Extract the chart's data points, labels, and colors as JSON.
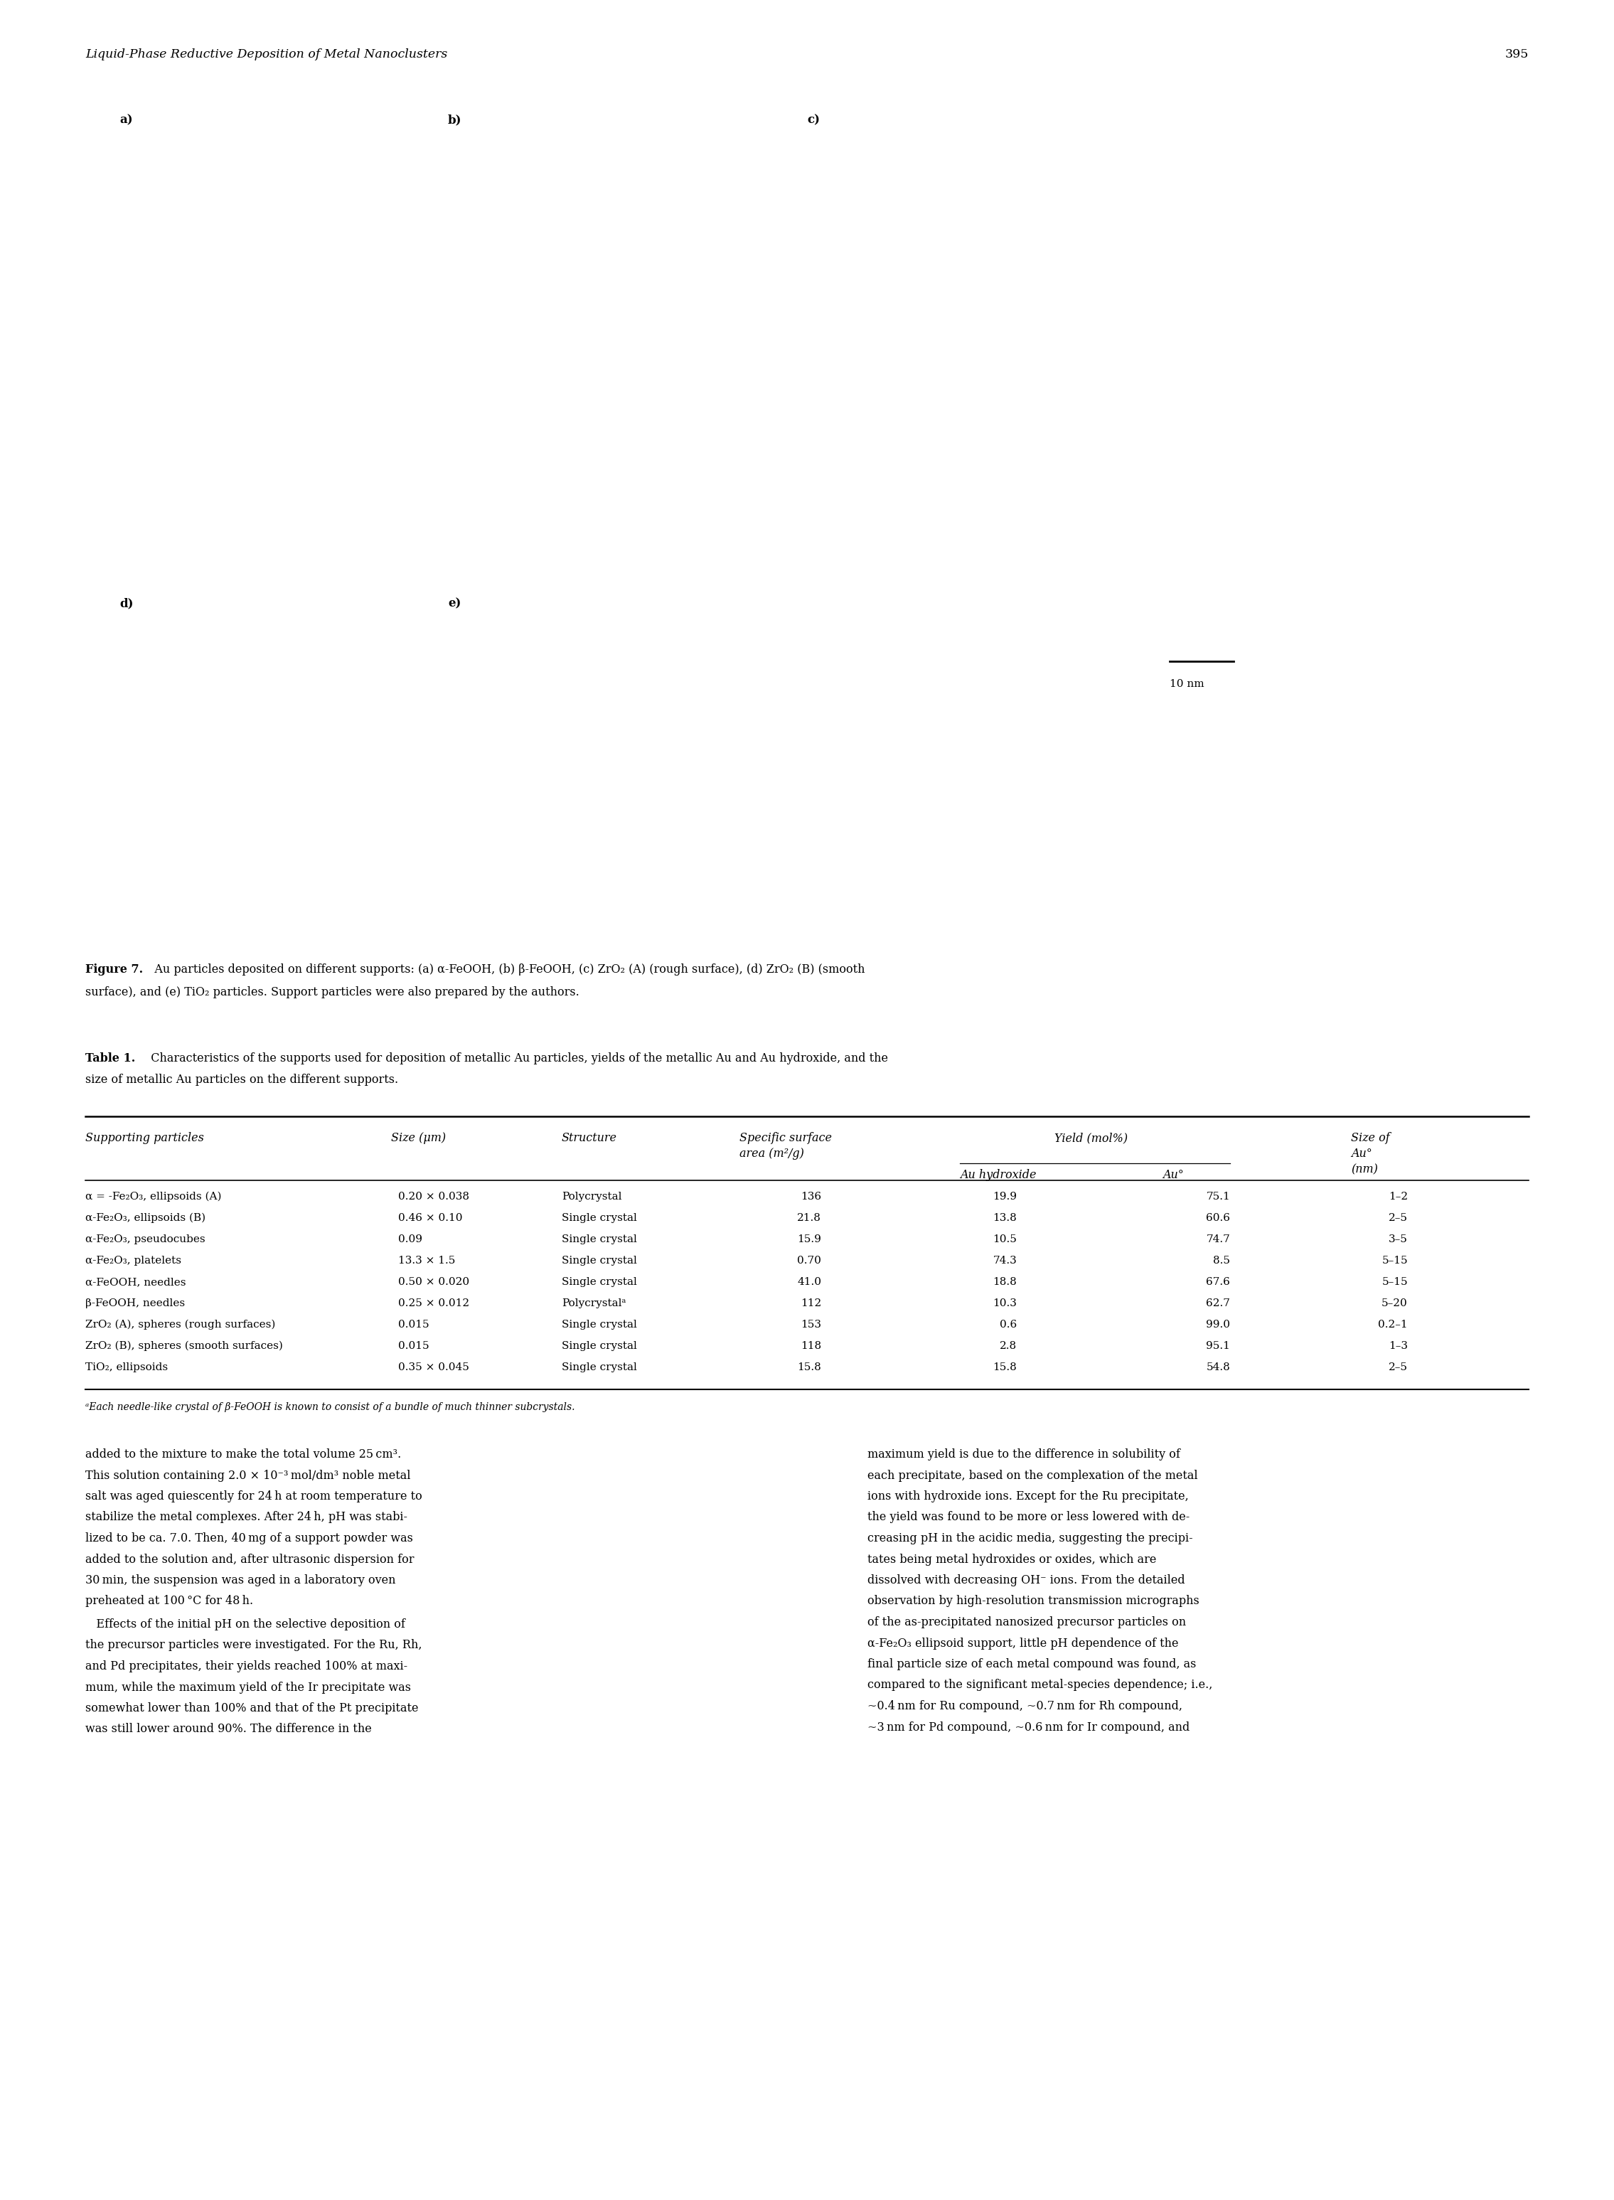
{
  "page_title_left": "Liquid-Phase Reductive Deposition of Metal Nanoclusters",
  "page_number": "395",
  "figure_caption_bold": "Figure 7.",
  "figure_caption_rest": "   Au particles deposited on different supports: (a) α-FeOOH, (b) β-FeOOH, (c) ZrO₂ (A) (rough surface), (d) ZrO₂ (B) (smooth",
  "figure_caption_line2": "surface), and (e) TiO₂ particles. Support particles were also prepared by the authors.",
  "table_title_bold": "Table 1.",
  "table_title_rest": "  Characteristics of the supports used for deposition of metallic Au particles, yields of the metallic Au and Au hydroxide, and the",
  "table_title_line2": "size of metallic Au particles on the different supports.",
  "table_footnote": "ᵃEach needle-like crystal of β-FeOOH is known to consist of a bundle of much thinner subcrystals.",
  "rows": [
    [
      "α = -Fe₂O₃, ellipsoids (A)",
      "0.20 × 0.038",
      "Polycrystal",
      "136",
      "19.9",
      "75.1",
      "1–2"
    ],
    [
      "α-Fe₂O₃, ellipsoids (B)",
      "0.46 × 0.10",
      "Single crystal",
      "21.8",
      "13.8",
      "60.6",
      "2–5"
    ],
    [
      "α-Fe₂O₃, pseudocubes",
      "0.09",
      "Single crystal",
      "15.9",
      "10.5",
      "74.7",
      "3–5"
    ],
    [
      "α-Fe₂O₃, platelets",
      "13.3 × 1.5",
      "Single crystal",
      "0.70",
      "74.3",
      "8.5",
      "5–15"
    ],
    [
      "α-FeOOH, needles",
      "0.50 × 0.020",
      "Single crystal",
      "41.0",
      "18.8",
      "67.6",
      "5–15"
    ],
    [
      "β-FeOOH, needles",
      "0.25 × 0.012",
      "Polycrystalᵃ",
      "112",
      "10.3",
      "62.7",
      "5–20"
    ],
    [
      "ZrO₂ (A), spheres (rough surfaces)",
      "0.015",
      "Single crystal",
      "153",
      "0.6",
      "99.0",
      "0.2–1"
    ],
    [
      "ZrO₂ (B), spheres (smooth surfaces)",
      "0.015",
      "Single crystal",
      "118",
      "2.8",
      "95.1",
      "1–3"
    ],
    [
      "TiO₂, ellipsoids",
      "0.35 × 0.045",
      "Single crystal",
      "15.8",
      "15.8",
      "54.8",
      "2–5"
    ]
  ],
  "body_left_para1": [
    "added to the mixture to make the total volume 25 cm³.",
    "This solution containing 2.0 × 10⁻³ mol/dm³ noble metal",
    "salt was aged quiescently for 24 h at room temperature to",
    "stabilize the metal complexes. After 24 h, pH was stabi-",
    "lized to be ca. 7.0. Then, 40 mg of a support powder was",
    "added to the solution and, after ultrasonic dispersion for",
    "30 min, the suspension was aged in a laboratory oven",
    "preheated at 100 °C for 48 h."
  ],
  "body_left_para2": [
    "   Effects of the initial pH on the selective deposition of",
    "the precursor particles were investigated. For the Ru, Rh,",
    "and Pd precipitates, their yields reached 100% at maxi-",
    "mum, while the maximum yield of the Ir precipitate was",
    "somewhat lower than 100% and that of the Pt precipitate",
    "was still lower around 90%. The difference in the"
  ],
  "body_right_para1": [
    "maximum yield is due to the difference in solubility of",
    "each precipitate, based on the complexation of the metal",
    "ions with hydroxide ions. Except for the Ru precipitate,",
    "the yield was found to be more or less lowered with de-",
    "creasing pH in the acidic media, suggesting the precipi-",
    "tates being metal hydroxides or oxides, which are",
    "dissolved with decreasing OH⁻ ions. From the detailed",
    "observation by high-resolution transmission micrographs",
    "of the as-precipitated nanosized precursor particles on",
    "α-Fe₂O₃ ellipsoid support, little pH dependence of the",
    "final particle size of each metal compound was found, as",
    "compared to the significant metal-species dependence; i.e.,",
    "~0.4 nm for Ru compound, ~0.7 nm for Rh compound,",
    "~3 nm for Pd compound, ~0.6 nm for Ir compound, and"
  ]
}
